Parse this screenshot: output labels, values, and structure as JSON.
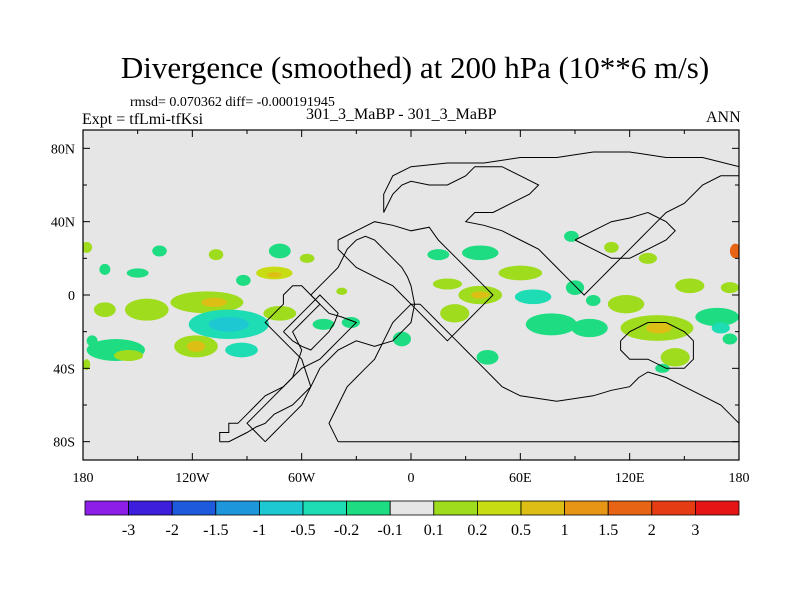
{
  "chart_data": {
    "type": "heatmap",
    "title": "Divergence (smoothed) at 200 hPa (10**6 m/s)",
    "stats_text": "rmsd= 0.070362 diff= -0.000191945",
    "left_label": "Expt = tfLmi-tfKsi",
    "center_label": "301_3_MaBP - 301_3_MaBP",
    "right_label": "ANN",
    "xlim": [
      -180,
      180
    ],
    "ylim": [
      -90,
      90
    ],
    "x_ticks": [
      {
        "value": -180,
        "label": "180"
      },
      {
        "value": -120,
        "label": "120W"
      },
      {
        "value": -60,
        "label": "60W"
      },
      {
        "value": 0,
        "label": "0"
      },
      {
        "value": 60,
        "label": "60E"
      },
      {
        "value": 120,
        "label": "120E"
      },
      {
        "value": 180,
        "label": "180"
      }
    ],
    "y_ticks": [
      {
        "value": 80,
        "label": "80N"
      },
      {
        "value": 40,
        "label": "40N"
      },
      {
        "value": 0,
        "label": "0"
      },
      {
        "value": -40,
        "label": "40S"
      },
      {
        "value": -80,
        "label": "80S"
      }
    ],
    "colorbar": {
      "colors": [
        "#8c1ee8",
        "#3c1edc",
        "#1e5adc",
        "#1e96dc",
        "#1ec8d2",
        "#1edcb4",
        "#1edc82",
        "#e6e6e6",
        "#a0dc1e",
        "#c8dc14",
        "#dcbe14",
        "#e69614",
        "#e66414",
        "#e63c14",
        "#e61414"
      ],
      "labels": [
        "-3",
        "-2",
        "-1.5",
        "-1",
        "-0.5",
        "-0.2",
        "-0.1",
        "0.1",
        "0.2",
        "0.5",
        "1",
        "1.5",
        "2",
        "3"
      ]
    },
    "anomalies": [
      {
        "lon": -178,
        "lat": 26,
        "rx": 3,
        "ry": 3,
        "value": 0.15
      },
      {
        "lon": -168,
        "lat": 14,
        "rx": 3,
        "ry": 3,
        "value": -0.15
      },
      {
        "lon": -150,
        "lat": 12,
        "rx": 6,
        "ry": 2.5,
        "value": -0.15
      },
      {
        "lon": -138,
        "lat": 24,
        "rx": 4,
        "ry": 3,
        "value": -0.15
      },
      {
        "lon": -107,
        "lat": 22,
        "rx": 4,
        "ry": 3,
        "value": 0.15
      },
      {
        "lon": -92,
        "lat": 8,
        "rx": 4,
        "ry": 3,
        "value": -0.15
      },
      {
        "lon": -75,
        "lat": 12,
        "rx": 10,
        "ry": 3.5,
        "value": 0.3
      },
      {
        "lon": -75,
        "lat": 11,
        "rx": 4,
        "ry": 1.5,
        "value": 0.6
      },
      {
        "lon": -72,
        "lat": 24,
        "rx": 6,
        "ry": 4,
        "value": -0.15
      },
      {
        "lon": -57,
        "lat": 20,
        "rx": 4,
        "ry": 2.5,
        "value": 0.15
      },
      {
        "lon": -38,
        "lat": 2,
        "rx": 3,
        "ry": 2,
        "value": 0.15
      },
      {
        "lon": -168,
        "lat": -8,
        "rx": 6,
        "ry": 4,
        "value": 0.15
      },
      {
        "lon": -175,
        "lat": -25,
        "rx": 3,
        "ry": 3,
        "value": -0.15
      },
      {
        "lon": -178,
        "lat": -38,
        "rx": 2,
        "ry": 3,
        "value": 0.15
      },
      {
        "lon": -162,
        "lat": -30,
        "rx": 16,
        "ry": 6,
        "value": -0.15
      },
      {
        "lon": -155,
        "lat": -33,
        "rx": 8,
        "ry": 3,
        "value": 0.15
      },
      {
        "lon": -145,
        "lat": -8,
        "rx": 12,
        "ry": 6,
        "value": 0.15
      },
      {
        "lon": -112,
        "lat": -4,
        "rx": 20,
        "ry": 6,
        "value": 0.15
      },
      {
        "lon": -108,
        "lat": -4,
        "rx": 7,
        "ry": 2.5,
        "value": 0.6
      },
      {
        "lon": -100,
        "lat": -16,
        "rx": 22,
        "ry": 8,
        "value": -0.3
      },
      {
        "lon": -100,
        "lat": -16,
        "rx": 11,
        "ry": 4,
        "value": -0.7
      },
      {
        "lon": -118,
        "lat": -28,
        "rx": 12,
        "ry": 6,
        "value": 0.15
      },
      {
        "lon": -118,
        "lat": -28,
        "rx": 5,
        "ry": 3,
        "value": 0.6
      },
      {
        "lon": -93,
        "lat": -30,
        "rx": 9,
        "ry": 4,
        "value": -0.3
      },
      {
        "lon": -72,
        "lat": -10,
        "rx": 9,
        "ry": 4,
        "value": 0.15
      },
      {
        "lon": -48,
        "lat": -16,
        "rx": 6,
        "ry": 3,
        "value": -0.15
      },
      {
        "lon": -33,
        "lat": -15,
        "rx": 5,
        "ry": 3,
        "value": -0.15
      },
      {
        "lon": -5,
        "lat": -24,
        "rx": 5,
        "ry": 4,
        "value": -0.15
      },
      {
        "lon": 15,
        "lat": 22,
        "rx": 6,
        "ry": 3,
        "value": -0.15
      },
      {
        "lon": 20,
        "lat": 6,
        "rx": 8,
        "ry": 3,
        "value": 0.15
      },
      {
        "lon": 24,
        "lat": -10,
        "rx": 8,
        "ry": 5,
        "value": 0.15
      },
      {
        "lon": 38,
        "lat": 23,
        "rx": 10,
        "ry": 4,
        "value": -0.15
      },
      {
        "lon": 38,
        "lat": 0,
        "rx": 12,
        "ry": 5,
        "value": 0.15
      },
      {
        "lon": 38,
        "lat": 0,
        "rx": 5,
        "ry": 2,
        "value": 0.6
      },
      {
        "lon": 60,
        "lat": 12,
        "rx": 12,
        "ry": 4,
        "value": 0.15
      },
      {
        "lon": 67,
        "lat": -1,
        "rx": 10,
        "ry": 4,
        "value": -0.3
      },
      {
        "lon": 77,
        "lat": -16,
        "rx": 14,
        "ry": 6,
        "value": -0.15
      },
      {
        "lon": 98,
        "lat": -18,
        "rx": 10,
        "ry": 5,
        "value": -0.15
      },
      {
        "lon": 90,
        "lat": 4,
        "rx": 5,
        "ry": 4,
        "value": -0.15
      },
      {
        "lon": 100,
        "lat": -3,
        "rx": 4,
        "ry": 3,
        "value": -0.15
      },
      {
        "lon": 88,
        "lat": 32,
        "rx": 4,
        "ry": 3,
        "value": -0.15
      },
      {
        "lon": 110,
        "lat": 26,
        "rx": 4,
        "ry": 3,
        "value": 0.15
      },
      {
        "lon": 130,
        "lat": 20,
        "rx": 5,
        "ry": 3,
        "value": 0.15
      },
      {
        "lon": 118,
        "lat": -5,
        "rx": 10,
        "ry": 5,
        "value": 0.15
      },
      {
        "lon": 135,
        "lat": -18,
        "rx": 20,
        "ry": 7,
        "value": 0.15
      },
      {
        "lon": 136,
        "lat": -18,
        "rx": 7,
        "ry": 3,
        "value": 0.6
      },
      {
        "lon": 145,
        "lat": -34,
        "rx": 8,
        "ry": 5,
        "value": 0.15
      },
      {
        "lon": 153,
        "lat": 5,
        "rx": 8,
        "ry": 4,
        "value": 0.15
      },
      {
        "lon": 168,
        "lat": -12,
        "rx": 12,
        "ry": 5,
        "value": -0.15
      },
      {
        "lon": 170,
        "lat": -18,
        "rx": 5,
        "ry": 3,
        "value": -0.5
      },
      {
        "lon": 178,
        "lat": 24,
        "rx": 3,
        "ry": 4,
        "value": 1.5
      },
      {
        "lon": 175,
        "lat": 4,
        "rx": 5,
        "ry": 3,
        "value": 0.15
      },
      {
        "lon": 175,
        "lat": -24,
        "rx": 4,
        "ry": 3,
        "value": -0.15
      },
      {
        "lon": 138,
        "lat": -40,
        "rx": 4,
        "ry": 2.5,
        "value": -0.15
      },
      {
        "lon": 42,
        "lat": -34,
        "rx": 6,
        "ry": 4,
        "value": -0.15
      }
    ],
    "coastlines": [
      [
        [
          -105,
          -80
        ],
        [
          -105,
          -75
        ],
        [
          -100,
          -75
        ],
        [
          -100,
          -70
        ],
        [
          -95,
          -70
        ],
        [
          -90,
          -65
        ],
        [
          -85,
          -60
        ],
        [
          -80,
          -55
        ],
        [
          -70,
          -50
        ],
        [
          -60,
          -40
        ],
        [
          -50,
          -35
        ],
        [
          -45,
          -30
        ],
        [
          -40,
          -25
        ],
        [
          -35,
          -20
        ],
        [
          -30,
          -15
        ],
        [
          -38,
          -12
        ],
        [
          -45,
          -10
        ],
        [
          -50,
          -5
        ],
        [
          -55,
          0
        ],
        [
          -60,
          5
        ],
        [
          -65,
          5
        ],
        [
          -70,
          0
        ],
        [
          -70,
          -5
        ],
        [
          -75,
          -10
        ],
        [
          -80,
          -15
        ],
        [
          -75,
          -20
        ],
        [
          -70,
          -25
        ],
        [
          -60,
          -35
        ],
        [
          -55,
          -50
        ],
        [
          -65,
          -60
        ],
        [
          -75,
          -65
        ],
        [
          -80,
          -70
        ],
        [
          -85,
          -72
        ],
        [
          -90,
          -75
        ],
        [
          -100,
          -80
        ],
        [
          -105,
          -80
        ]
      ],
      [
        [
          -80,
          -80
        ],
        [
          -85,
          -75
        ],
        [
          -90,
          -70
        ],
        [
          -85,
          -65
        ],
        [
          -75,
          -55
        ],
        [
          -65,
          -45
        ],
        [
          -60,
          -30
        ],
        [
          -65,
          -20
        ],
        [
          -60,
          -15
        ],
        [
          -55,
          -10
        ],
        [
          -50,
          -5
        ],
        [
          -55,
          0
        ],
        [
          -50,
          5
        ],
        [
          -45,
          10
        ],
        [
          -40,
          15
        ],
        [
          -35,
          25
        ],
        [
          -30,
          30
        ],
        [
          -25,
          32
        ],
        [
          -20,
          30
        ],
        [
          -15,
          25
        ],
        [
          -10,
          20
        ],
        [
          -5,
          15
        ],
        [
          -2,
          10
        ],
        [
          0,
          5
        ],
        [
          2,
          -5
        ],
        [
          0,
          -15
        ],
        [
          -5,
          -20
        ],
        [
          -10,
          -25
        ],
        [
          -20,
          -28
        ],
        [
          -30,
          -25
        ],
        [
          -40,
          -30
        ],
        [
          -50,
          -40
        ],
        [
          -55,
          -50
        ],
        [
          -60,
          -60
        ],
        [
          -70,
          -70
        ],
        [
          -75,
          -75
        ],
        [
          -80,
          -80
        ]
      ],
      [
        [
          -40,
          -80
        ],
        [
          180,
          -80
        ],
        [
          180,
          -70
        ],
        [
          175,
          -65
        ],
        [
          170,
          -60
        ],
        [
          160,
          -55
        ],
        [
          150,
          -50
        ],
        [
          140,
          -45
        ],
        [
          130,
          -42
        ],
        [
          125,
          -45
        ],
        [
          120,
          -50
        ],
        [
          110,
          -52
        ],
        [
          100,
          -55
        ],
        [
          80,
          -58
        ],
        [
          60,
          -55
        ],
        [
          50,
          -50
        ],
        [
          45,
          -45
        ],
        [
          40,
          -40
        ],
        [
          35,
          -35
        ],
        [
          30,
          -30
        ],
        [
          25,
          -25
        ],
        [
          20,
          -20
        ],
        [
          15,
          -15
        ],
        [
          10,
          -10
        ],
        [
          5,
          -5
        ],
        [
          0,
          -5
        ],
        [
          -5,
          -10
        ],
        [
          -10,
          -15
        ],
        [
          -15,
          -25
        ],
        [
          -20,
          -35
        ],
        [
          -25,
          -40
        ],
        [
          -30,
          -45
        ],
        [
          -35,
          -50
        ],
        [
          -40,
          -60
        ],
        [
          -45,
          -70
        ],
        [
          -40,
          -80
        ]
      ],
      [
        [
          -15,
          45
        ],
        [
          -10,
          55
        ],
        [
          -5,
          60
        ],
        [
          0,
          62
        ],
        [
          10,
          60
        ],
        [
          20,
          60
        ],
        [
          30,
          65
        ],
        [
          35,
          70
        ],
        [
          50,
          70
        ],
        [
          60,
          65
        ],
        [
          70,
          60
        ],
        [
          65,
          55
        ],
        [
          55,
          50
        ],
        [
          45,
          45
        ],
        [
          35,
          45
        ],
        [
          30,
          40
        ],
        [
          40,
          38
        ],
        [
          50,
          35
        ],
        [
          60,
          30
        ],
        [
          70,
          25
        ],
        [
          80,
          15
        ],
        [
          85,
          10
        ],
        [
          90,
          5
        ],
        [
          95,
          0
        ],
        [
          100,
          5
        ],
        [
          105,
          10
        ],
        [
          110,
          15
        ],
        [
          115,
          20
        ],
        [
          120,
          25
        ],
        [
          125,
          30
        ],
        [
          130,
          35
        ],
        [
          140,
          45
        ],
        [
          150,
          50
        ],
        [
          160,
          60
        ],
        [
          170,
          65
        ],
        [
          180,
          65
        ],
        [
          180,
          70
        ],
        [
          160,
          75
        ],
        [
          140,
          75
        ],
        [
          120,
          78
        ],
        [
          100,
          78
        ],
        [
          80,
          75
        ],
        [
          60,
          75
        ],
        [
          40,
          72
        ],
        [
          20,
          72
        ],
        [
          0,
          70
        ],
        [
          -10,
          65
        ],
        [
          -15,
          55
        ],
        [
          -15,
          45
        ]
      ],
      [
        [
          -40,
          30
        ],
        [
          -30,
          35
        ],
        [
          -20,
          40
        ],
        [
          -10,
          38
        ],
        [
          0,
          35
        ],
        [
          10,
          37
        ],
        [
          15,
          30
        ],
        [
          20,
          25
        ],
        [
          25,
          20
        ],
        [
          30,
          15
        ],
        [
          35,
          10
        ],
        [
          40,
          5
        ],
        [
          45,
          0
        ],
        [
          40,
          -5
        ],
        [
          35,
          -10
        ],
        [
          30,
          -15
        ],
        [
          25,
          -20
        ],
        [
          20,
          -25
        ],
        [
          15,
          -20
        ],
        [
          10,
          -15
        ],
        [
          5,
          -10
        ],
        [
          0,
          -5
        ],
        [
          -5,
          0
        ],
        [
          -10,
          5
        ],
        [
          -20,
          10
        ],
        [
          -30,
          15
        ],
        [
          -35,
          20
        ],
        [
          -40,
          25
        ],
        [
          -40,
          30
        ]
      ],
      [
        [
          -70,
          -20
        ],
        [
          -65,
          -15
        ],
        [
          -60,
          -10
        ],
        [
          -55,
          -5
        ],
        [
          -50,
          0
        ],
        [
          -45,
          -5
        ],
        [
          -40,
          -10
        ],
        [
          -42,
          -15
        ],
        [
          -45,
          -20
        ],
        [
          -50,
          -25
        ],
        [
          -55,
          -30
        ],
        [
          -60,
          -28
        ],
        [
          -65,
          -25
        ],
        [
          -70,
          -20
        ]
      ],
      [
        [
          90,
          30
        ],
        [
          100,
          35
        ],
        [
          110,
          40
        ],
        [
          120,
          42
        ],
        [
          130,
          45
        ],
        [
          140,
          40
        ],
        [
          145,
          35
        ],
        [
          140,
          30
        ],
        [
          130,
          25
        ],
        [
          120,
          20
        ],
        [
          110,
          20
        ],
        [
          100,
          25
        ],
        [
          90,
          30
        ]
      ],
      [
        [
          115,
          -25
        ],
        [
          120,
          -20
        ],
        [
          130,
          -15
        ],
        [
          140,
          -15
        ],
        [
          150,
          -20
        ],
        [
          155,
          -25
        ],
        [
          155,
          -35
        ],
        [
          150,
          -40
        ],
        [
          140,
          -40
        ],
        [
          130,
          -35
        ],
        [
          120,
          -35
        ],
        [
          115,
          -30
        ],
        [
          115,
          -25
        ]
      ]
    ]
  }
}
